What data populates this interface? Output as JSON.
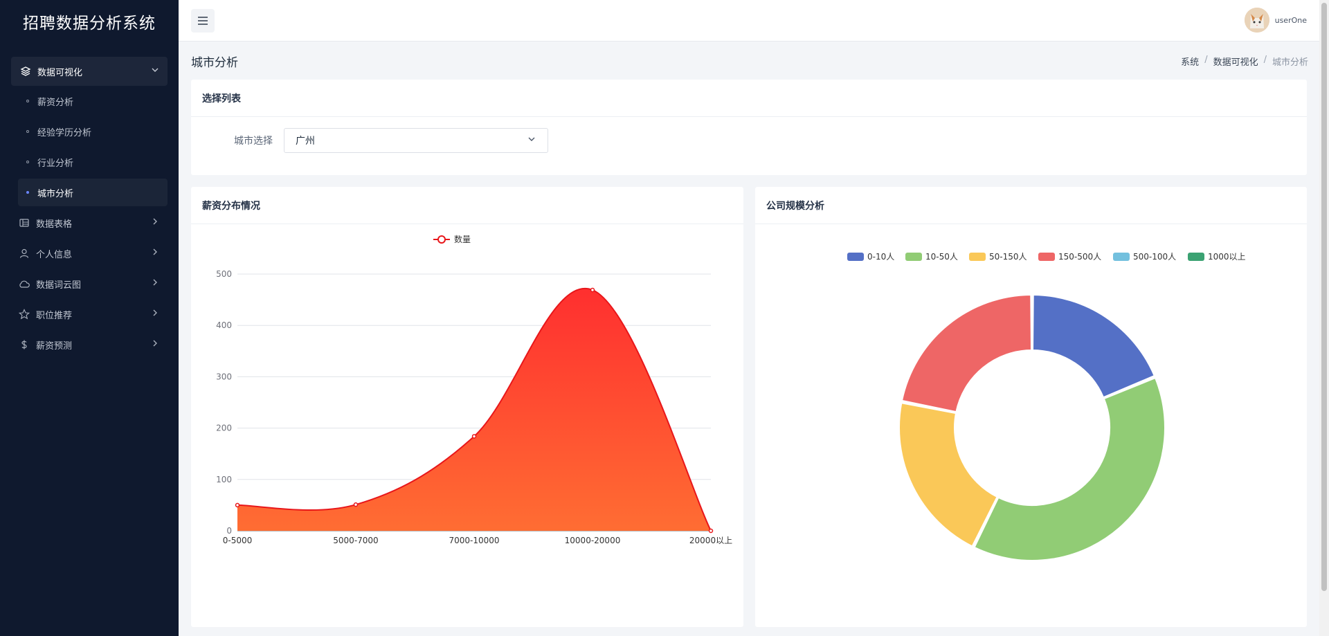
{
  "app": {
    "title": "招聘数据分析系统"
  },
  "sidebar": {
    "group": {
      "label": "数据可视化",
      "items": [
        {
          "label": "薪资分析",
          "active": false
        },
        {
          "label": "经验学历分析",
          "active": false
        },
        {
          "label": "行业分析",
          "active": false
        },
        {
          "label": "城市分析",
          "active": true
        }
      ]
    },
    "menu": [
      {
        "label": "数据表格",
        "icon": "table-icon"
      },
      {
        "label": "个人信息",
        "icon": "user-icon"
      },
      {
        "label": "数据词云图",
        "icon": "cloud-icon"
      },
      {
        "label": "职位推荐",
        "icon": "star-icon"
      },
      {
        "label": "薪资预测",
        "icon": "dollar-icon"
      }
    ]
  },
  "header": {
    "username": "userOne"
  },
  "page": {
    "title": "城市分析",
    "breadcrumb": [
      "系统",
      "数据可视化",
      "城市分析"
    ]
  },
  "select_card": {
    "title": "选择列表",
    "label": "城市选择",
    "value": "广州"
  },
  "salary_chart": {
    "title": "薪资分布情况",
    "chart_data": {
      "type": "area",
      "categories": [
        "0-5000",
        "5000-7000",
        "7000-10000",
        "10000-20000",
        "20000以上"
      ],
      "series": [
        {
          "name": "数量",
          "values": [
            50,
            51,
            184,
            469,
            0
          ]
        }
      ],
      "ylim": [
        0,
        500
      ],
      "yticks": [
        0,
        100,
        200,
        300,
        400,
        500
      ],
      "grid": true,
      "legend": "top-center",
      "colors": {
        "line": "#e8161a",
        "fill_top": "#ff2f2f",
        "fill_bottom": "#ff6d33"
      }
    }
  },
  "company_chart": {
    "title": "公司规模分析",
    "chart_data": {
      "type": "pie",
      "donut": true,
      "labels": [
        "0-10人",
        "10-50人",
        "50-150人",
        "150-500人",
        "500-100人",
        "1000以上"
      ],
      "values": [
        18,
        37,
        20,
        21,
        0,
        0
      ],
      "colors": [
        "#5470c6",
        "#91cc75",
        "#fac858",
        "#ee6666",
        "#73c0de",
        "#3ba272"
      ],
      "legend": "top-center"
    }
  }
}
